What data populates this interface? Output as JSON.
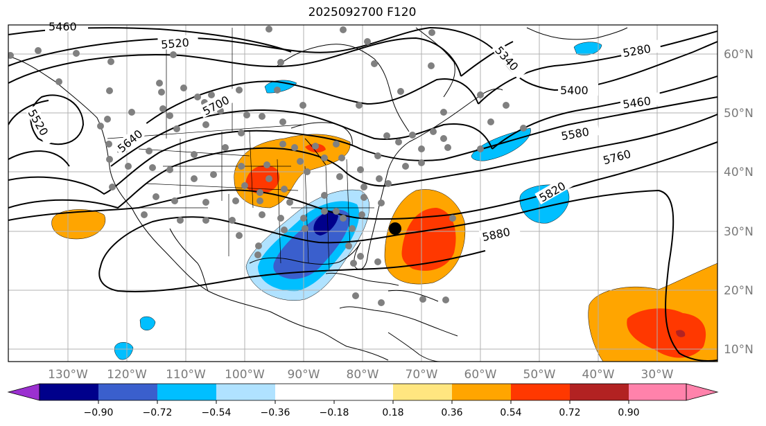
{
  "title": "2025092700 F120",
  "lon_labels": [
    "130°W",
    "120°W",
    "110°W",
    "100°W",
    "90°W",
    "80°W",
    "70°W",
    "60°W",
    "50°W",
    "40°W",
    "30°W"
  ],
  "lat_labels": [
    "60°N",
    "50°N",
    "40°N",
    "30°N",
    "20°N",
    "10°N"
  ],
  "contour_labels": [
    "5460",
    "5520",
    "5520",
    "5640",
    "5700",
    "5340",
    "5280",
    "5400",
    "5460",
    "5580",
    "5760",
    "5820",
    "5880"
  ],
  "colorbar": {
    "tick_labels": [
      "−0.90",
      "−0.72",
      "−0.54",
      "−0.36",
      "−0.18",
      "0.18",
      "0.36",
      "0.54",
      "0.72",
      "0.90"
    ],
    "colors": [
      "#9b30d0",
      "#00008b",
      "#3a5fcd",
      "#00bfff",
      "#b0e2ff",
      "#ffffff",
      "#ffe680",
      "#ffa500",
      "#ff3800",
      "#b22222",
      "#ff82ab"
    ]
  },
  "colors": {
    "grid": "#b0b0b0",
    "contour": "#000000",
    "station": "#808080",
    "marker": "#000000"
  }
}
